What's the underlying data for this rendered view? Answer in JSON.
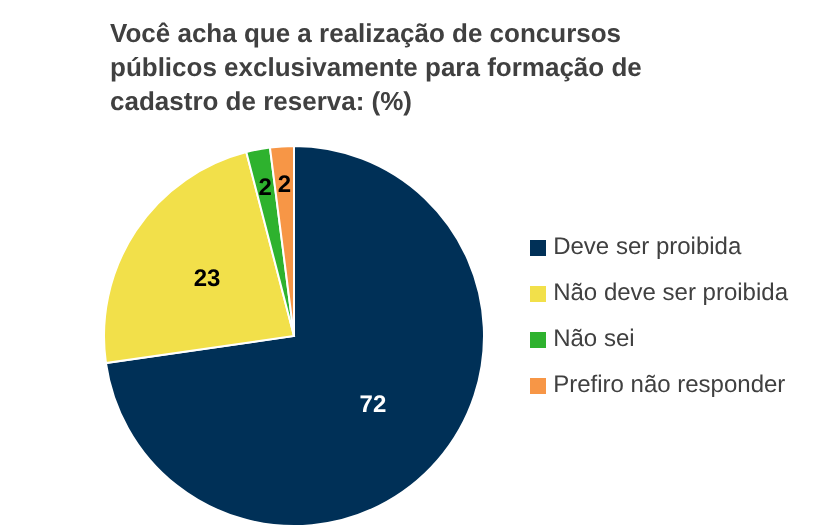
{
  "chart_data": {
    "type": "pie",
    "title": "Você acha que a realização de concursos públicos exclusivamente para formação de cadastro de reserva: (%)",
    "categories": [
      "Deve ser proibida",
      "Não deve ser proibida",
      "Não sei",
      "Prefiro não responder"
    ],
    "values": [
      72,
      23,
      2,
      2
    ],
    "colors": [
      "#003057",
      "#f2e04a",
      "#2eb22e",
      "#f79646"
    ],
    "data_labels": true,
    "legend": "right"
  }
}
